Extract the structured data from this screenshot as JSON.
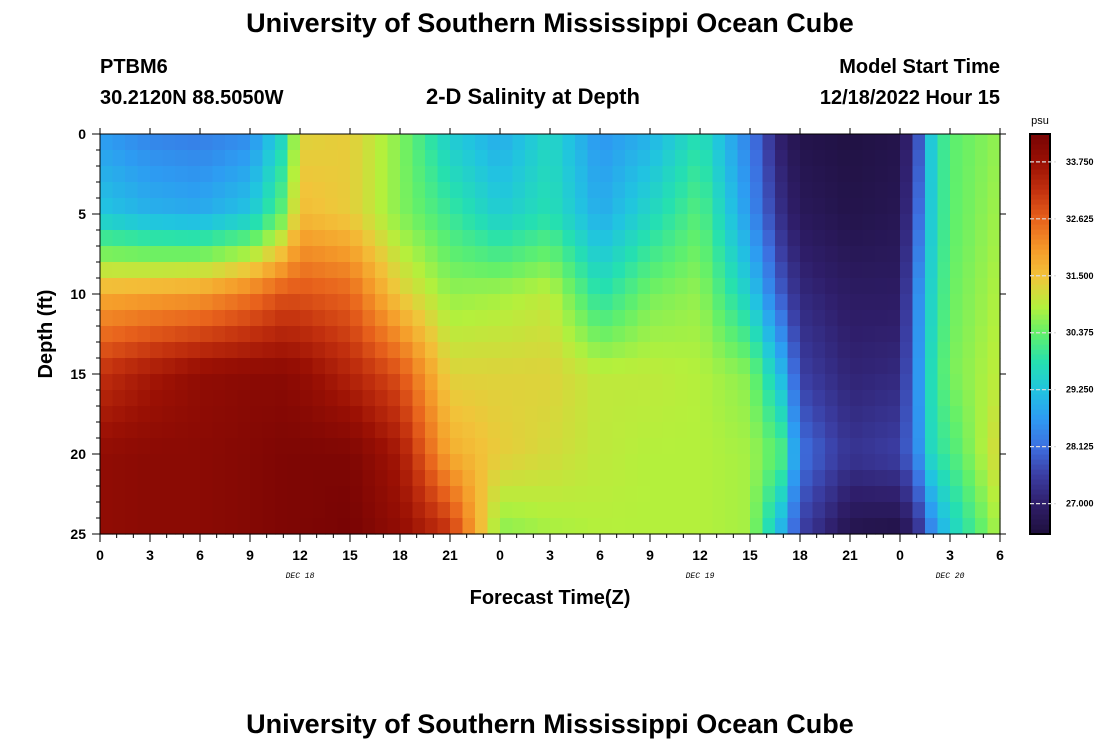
{
  "page": {
    "title": "University of Southern Mississippi Ocean Cube",
    "footer_title": "University of Southern Mississippi Ocean Cube",
    "station": "PTBM6",
    "location": "30.2120N  88.5050W",
    "subtitle": "2-D Salinity at Depth",
    "model_start_label": "Model Start Time",
    "model_start_value": "12/18/2022 Hour 15"
  },
  "chart_data": {
    "type": "heatmap",
    "title": "2-D Salinity at Depth",
    "xlabel": "Forecast Time(Z)",
    "ylabel": "Depth (ft)",
    "x_hours": [
      0,
      54
    ],
    "xlim": [
      0,
      54
    ],
    "ylim": [
      0,
      25
    ],
    "y_inverted": true,
    "x_ticks": [
      "0",
      "3",
      "6",
      "9",
      "12",
      "15",
      "18",
      "21",
      "0",
      "3",
      "6",
      "9",
      "12",
      "15",
      "18",
      "21",
      "0",
      "3",
      "6"
    ],
    "y_ticks": [
      "0",
      "5",
      "10",
      "15",
      "20",
      "25"
    ],
    "day_labels": [
      {
        "text": "DEC 18",
        "hour": 12
      },
      {
        "text": "DEC 19",
        "hour": 36
      },
      {
        "text": "DEC 20",
        "hour": 51
      }
    ],
    "colorbar": {
      "unit": "psu",
      "min": 26.4,
      "max": 34.3,
      "ticks": [
        "33.750",
        "32.625",
        "31.500",
        "30.375",
        "29.250",
        "28.125",
        "27.000"
      ],
      "tick_values": [
        33.75,
        32.625,
        31.5,
        30.375,
        29.25,
        28.125,
        27.0
      ]
    },
    "colorscale": [
      {
        "v": 26.4,
        "c": "#1e0f3c"
      },
      {
        "v": 27.0,
        "c": "#2f1e6a"
      },
      {
        "v": 27.6,
        "c": "#3b3fa5"
      },
      {
        "v": 28.125,
        "c": "#3d6fe0"
      },
      {
        "v": 28.7,
        "c": "#2d9cf2"
      },
      {
        "v": 29.25,
        "c": "#21c4e0"
      },
      {
        "v": 29.8,
        "c": "#25e0b0"
      },
      {
        "v": 30.375,
        "c": "#62f06a"
      },
      {
        "v": 30.9,
        "c": "#b4f03c"
      },
      {
        "v": 31.5,
        "c": "#f2c43a"
      },
      {
        "v": 32.0,
        "c": "#f59c2a"
      },
      {
        "v": 32.625,
        "c": "#e8621c"
      },
      {
        "v": 33.2,
        "c": "#c2300e"
      },
      {
        "v": 33.75,
        "c": "#9a1004"
      },
      {
        "v": 34.3,
        "c": "#780404"
      }
    ],
    "salinity_profiles": {
      "depth_ft": [
        0,
        5,
        10,
        15,
        20,
        25
      ],
      "by_hour": [
        {
          "hour": 0,
          "values": [
            28.7,
            29.3,
            31.8,
            33.2,
            33.9,
            33.9
          ]
        },
        {
          "hour": 3,
          "values": [
            28.4,
            29.0,
            31.9,
            33.6,
            34.0,
            34.0
          ]
        },
        {
          "hour": 6,
          "values": [
            28.3,
            28.9,
            32.0,
            33.9,
            34.0,
            34.0
          ]
        },
        {
          "hour": 9,
          "values": [
            28.5,
            29.3,
            32.4,
            34.0,
            34.1,
            34.1
          ]
        },
        {
          "hour": 11,
          "values": [
            29.6,
            30.4,
            32.8,
            34.0,
            34.2,
            34.2
          ]
        },
        {
          "hour": 12,
          "values": [
            31.3,
            31.6,
            32.8,
            33.9,
            34.2,
            34.2
          ]
        },
        {
          "hour": 15,
          "values": [
            31.4,
            31.4,
            32.6,
            33.4,
            34.2,
            34.3
          ]
        },
        {
          "hour": 18,
          "values": [
            30.6,
            30.6,
            31.4,
            32.8,
            33.6,
            33.9
          ]
        },
        {
          "hour": 21,
          "values": [
            29.4,
            30.0,
            30.7,
            31.3,
            31.8,
            33.2
          ]
        },
        {
          "hour": 24,
          "values": [
            28.9,
            29.4,
            30.8,
            31.3,
            31.4,
            30.6
          ]
        },
        {
          "hour": 27,
          "values": [
            29.6,
            29.8,
            31.0,
            31.3,
            31.2,
            30.8
          ]
        },
        {
          "hour": 30,
          "values": [
            28.6,
            28.9,
            29.8,
            31.0,
            31.0,
            30.9
          ]
        },
        {
          "hour": 33,
          "values": [
            29.0,
            29.6,
            30.5,
            31.0,
            30.9,
            30.9
          ]
        },
        {
          "hour": 36,
          "values": [
            29.8,
            30.3,
            30.7,
            30.9,
            30.9,
            30.9
          ]
        },
        {
          "hour": 39,
          "values": [
            28.3,
            28.6,
            29.4,
            30.6,
            30.8,
            30.8
          ]
        },
        {
          "hour": 41,
          "values": [
            26.9,
            27.2,
            27.8,
            29.0,
            30.2,
            28.8
          ]
        },
        {
          "hour": 42,
          "values": [
            26.6,
            26.8,
            27.2,
            27.6,
            28.2,
            27.6
          ]
        },
        {
          "hour": 45,
          "values": [
            26.5,
            26.6,
            26.9,
            27.1,
            27.4,
            26.6
          ]
        },
        {
          "hour": 48,
          "values": [
            26.6,
            26.7,
            26.9,
            27.2,
            27.6,
            26.5
          ]
        },
        {
          "hour": 49,
          "values": [
            27.6,
            27.9,
            28.4,
            28.5,
            28.4,
            27.2
          ]
        },
        {
          "hour": 50,
          "values": [
            29.6,
            29.6,
            29.7,
            29.9,
            29.8,
            28.5
          ]
        },
        {
          "hour": 51,
          "values": [
            30.3,
            30.3,
            30.4,
            30.5,
            30.1,
            29.4
          ]
        },
        {
          "hour": 54,
          "values": [
            30.7,
            30.8,
            30.9,
            31.0,
            31.3,
            30.9
          ]
        }
      ]
    }
  }
}
